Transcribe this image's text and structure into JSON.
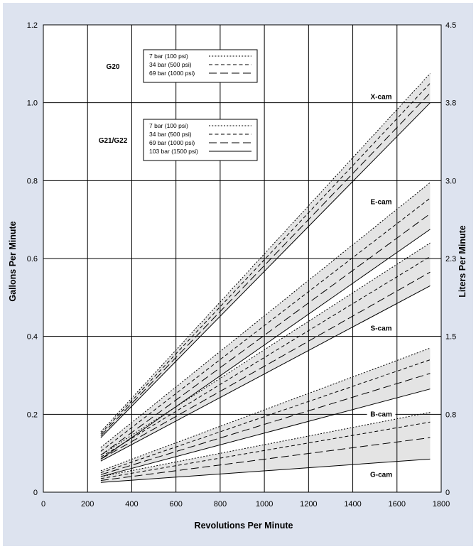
{
  "chart_data": {
    "type": "line",
    "title": "",
    "xlabel": "Revolutions Per Minute",
    "ylabel": "Gallons Per Minute",
    "ylabel_right": "Liters Per Minute",
    "xlim": [
      0,
      1800
    ],
    "ylim": [
      0,
      1.2
    ],
    "x_ticks": [
      "0",
      "200",
      "400",
      "600",
      "800",
      "1000",
      "1200",
      "1400",
      "1600",
      "1800"
    ],
    "y_ticks": [
      "0",
      "0.2",
      "0.4",
      "0.6",
      "0.8",
      "1.0",
      "1.2"
    ],
    "y_ticks_right": [
      {
        "label": "0",
        "gpm": 0
      },
      {
        "label": "0.8",
        "gpm": 0.2
      },
      {
        "label": "1.5",
        "gpm": 0.4
      },
      {
        "label": "2.3",
        "gpm": 0.6
      },
      {
        "label": "3.0",
        "gpm": 0.8
      },
      {
        "label": "3.8",
        "gpm": 1.0
      },
      {
        "label": "4.5",
        "gpm": 1.2
      }
    ],
    "grid": true,
    "pressure_styles": {
      "7 bar (100 psi)": "dotted",
      "34 bar (500 psi)": "dashed",
      "69 bar (1000 psi)": "long-dashed",
      "103 bar (1500 psi)": "solid"
    },
    "legends": [
      {
        "model": "G20",
        "entries": [
          "7 bar (100 psi)",
          "34 bar (500 psi)",
          "69 bar (1000 psi)"
        ]
      },
      {
        "model": "G21/G22",
        "entries": [
          "7 bar (100 psi)",
          "34 bar (500 psi)",
          "69 bar (1000 psi)",
          "103 bar (1500 psi)"
        ]
      }
    ],
    "cams": [
      {
        "name": "X-cam",
        "label_at": [
          1400,
          1.015
        ],
        "series": [
          {
            "pressure": "7 bar (100 psi)",
            "x": [
              260,
              1750
            ],
            "y": [
              0.155,
              1.075
            ]
          },
          {
            "pressure": "34 bar (500 psi)",
            "x": [
              260,
              1750
            ],
            "y": [
              0.15,
              1.05
            ]
          },
          {
            "pressure": "69 bar (1000 psi)",
            "x": [
              260,
              1750
            ],
            "y": [
              0.145,
              1.025
            ]
          },
          {
            "pressure": "103 bar (1500 psi)",
            "x": [
              260,
              1750
            ],
            "y": [
              0.14,
              1.0
            ]
          }
        ]
      },
      {
        "name": "E-cam",
        "label_at": [
          1400,
          0.745
        ],
        "series": [
          {
            "pressure": "7 bar (100 psi)",
            "x": [
              260,
              1750
            ],
            "y": [
              0.115,
              0.795
            ]
          },
          {
            "pressure": "34 bar (500 psi)",
            "x": [
              260,
              1750
            ],
            "y": [
              0.105,
              0.755
            ]
          },
          {
            "pressure": "69 bar (1000 psi)",
            "x": [
              260,
              1750
            ],
            "y": [
              0.095,
              0.715
            ]
          },
          {
            "pressure": "103 bar (1500 psi)",
            "x": [
              260,
              1750
            ],
            "y": [
              0.085,
              0.675
            ]
          }
        ]
      },
      {
        "name": "S-cam",
        "label_at": [
          1400,
          0.42
        ],
        "series": [
          {
            "pressure": "7 bar (100 psi)",
            "x": [
              260,
              1750
            ],
            "y": [
              0.095,
              0.64
            ]
          },
          {
            "pressure": "34 bar (500 psi)",
            "x": [
              260,
              1750
            ],
            "y": [
              0.09,
              0.605
            ]
          },
          {
            "pressure": "69 bar (1000 psi)",
            "x": [
              260,
              1750
            ],
            "y": [
              0.085,
              0.565
            ]
          },
          {
            "pressure": "103 bar (1500 psi)",
            "x": [
              260,
              1750
            ],
            "y": [
              0.08,
              0.53
            ]
          }
        ]
      },
      {
        "name": "B-cam",
        "label_at": [
          1400,
          0.2
        ],
        "series": [
          {
            "pressure": "7 bar (100 psi)",
            "x": [
              260,
              1750
            ],
            "y": [
              0.055,
              0.37
            ]
          },
          {
            "pressure": "34 bar (500 psi)",
            "x": [
              260,
              1750
            ],
            "y": [
              0.05,
              0.34
            ]
          },
          {
            "pressure": "69 bar (1000 psi)",
            "x": [
              260,
              1750
            ],
            "y": [
              0.045,
              0.305
            ]
          },
          {
            "pressure": "103 bar (1500 psi)",
            "x": [
              260,
              1750
            ],
            "y": [
              0.04,
              0.265
            ]
          }
        ]
      },
      {
        "name": "G-cam",
        "label_at": [
          1400,
          0.045
        ],
        "series": [
          {
            "pressure": "7 bar (100 psi)",
            "x": [
              260,
              1750
            ],
            "y": [
              0.04,
              0.205
            ]
          },
          {
            "pressure": "34 bar (500 psi)",
            "x": [
              260,
              1750
            ],
            "y": [
              0.035,
              0.18
            ]
          },
          {
            "pressure": "69 bar (1000 psi)",
            "x": [
              260,
              1750
            ],
            "y": [
              0.03,
              0.14
            ]
          },
          {
            "pressure": "103 bar (1500 psi)",
            "x": [
              260,
              1750
            ],
            "y": [
              0.025,
              0.085
            ]
          }
        ]
      }
    ],
    "colors": {
      "background": "#dde3ef",
      "plot_area": "#ffffff",
      "band_fill": "#e4e4e4",
      "grid": "#000000",
      "lines": "#000000"
    }
  }
}
